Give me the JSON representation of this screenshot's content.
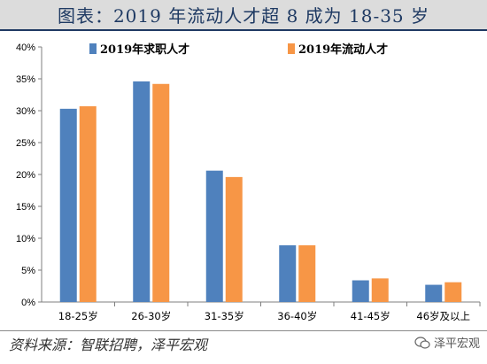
{
  "title": "图表：2019 年流动人才超 8 成为 18-35 岁",
  "source": "资料来源：智联招聘，泽平宏观",
  "watermark": "泽平宏观",
  "chart_data": {
    "type": "bar",
    "categories": [
      "18-25岁",
      "26-30岁",
      "31-35岁",
      "36-40岁",
      "41-45岁",
      "46岁及以上"
    ],
    "series": [
      {
        "name": "2019年求职人才",
        "values": [
          30.3,
          34.6,
          20.6,
          8.9,
          3.4,
          2.7
        ],
        "color": "#4f81bd"
      },
      {
        "name": "2019年流动人才",
        "values": [
          30.7,
          34.2,
          19.6,
          8.9,
          3.7,
          3.1
        ],
        "color": "#f79646"
      }
    ],
    "ylim": [
      0,
      40
    ],
    "yticks": [
      "0%",
      "5%",
      "10%",
      "15%",
      "20%",
      "25%",
      "30%",
      "35%",
      "40%"
    ],
    "legend_position": "top",
    "grid": false
  }
}
